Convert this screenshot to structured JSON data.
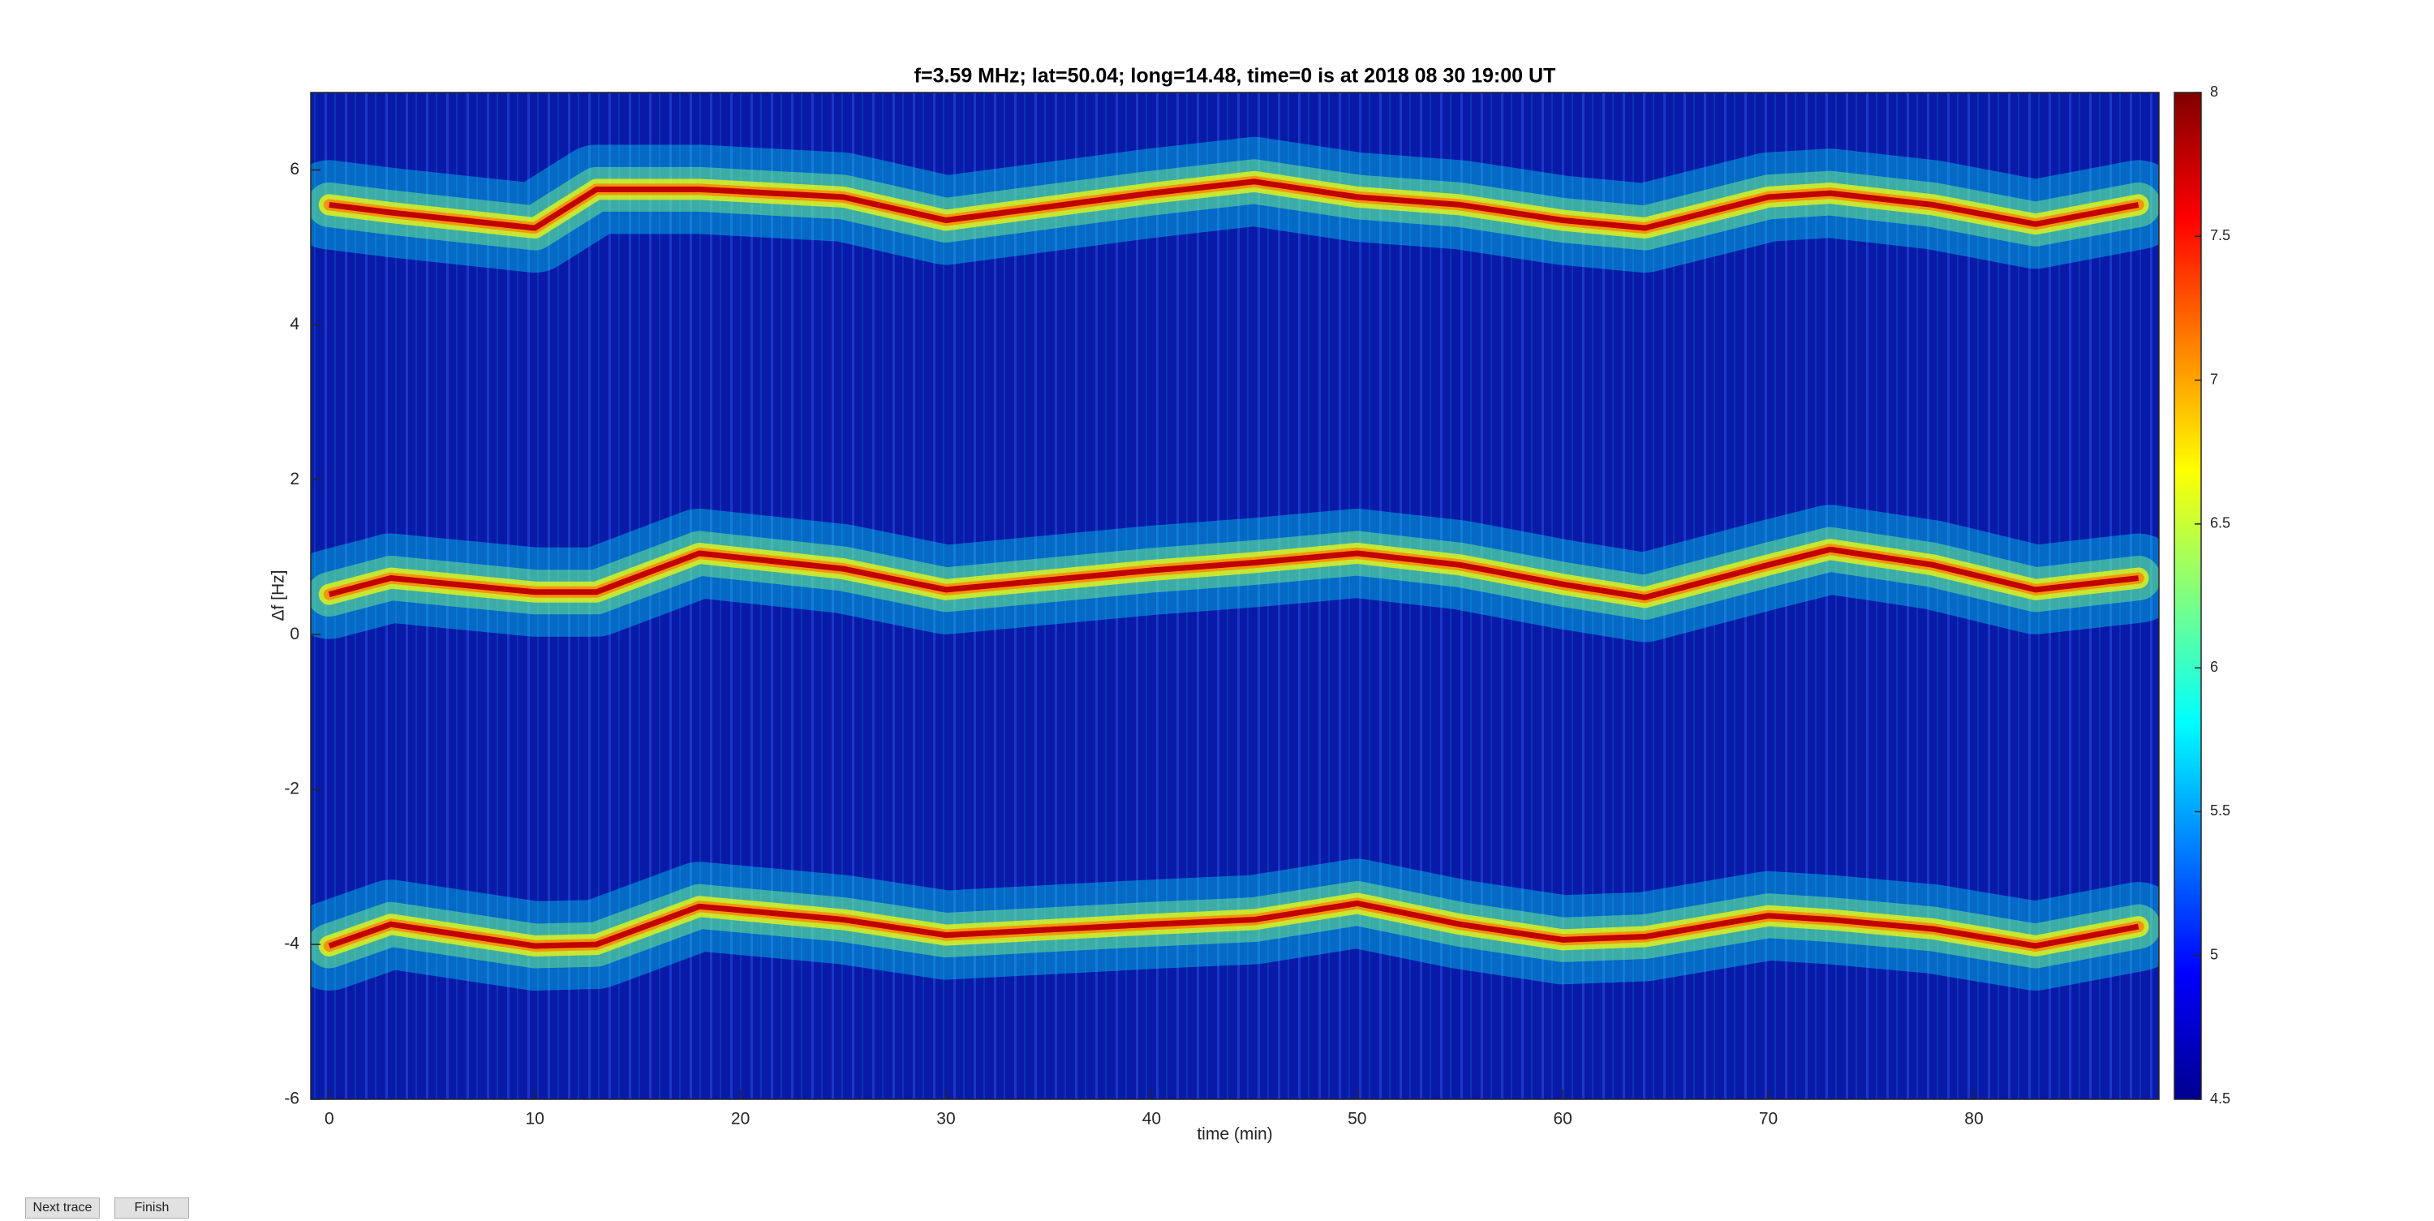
{
  "chart_data": {
    "type": "spectrogram",
    "title": "f=3.59 MHz;  lat=50.04; long=14.48, time=0 is at 2018 08 30 19:00 UT",
    "xlabel": "time (min)",
    "ylabel": "Δf [Hz]",
    "xlim": [
      -0.9,
      89
    ],
    "ylim": [
      -6,
      7
    ],
    "xticks": [
      0,
      10,
      20,
      30,
      40,
      50,
      60,
      70,
      80
    ],
    "yticks": [
      -6,
      -4,
      -2,
      0,
      2,
      4,
      6
    ],
    "x": [
      0,
      3,
      10,
      13,
      18,
      25,
      30,
      40,
      45,
      50,
      55,
      60,
      64,
      70,
      73,
      78,
      83,
      88
    ],
    "traces": [
      {
        "color": "#c00000",
        "values": [
          5.55,
          5.45,
          5.25,
          5.75,
          5.75,
          5.65,
          5.35,
          5.7,
          5.85,
          5.65,
          5.55,
          5.35,
          5.25,
          5.65,
          5.7,
          5.55,
          5.3,
          5.55
        ]
      },
      {
        "color": "#c00000",
        "values": [
          0.52,
          0.73,
          0.55,
          0.55,
          1.05,
          0.85,
          0.58,
          0.83,
          0.93,
          1.05,
          0.9,
          0.65,
          0.48,
          0.9,
          1.1,
          0.9,
          0.58,
          0.73
        ]
      },
      {
        "color": "#c00000",
        "values": [
          -4.02,
          -3.74,
          -4.02,
          -4.0,
          -3.51,
          -3.68,
          -3.88,
          -3.74,
          -3.68,
          -3.47,
          -3.74,
          -3.94,
          -3.9,
          -3.63,
          -3.68,
          -3.8,
          -4.02,
          -3.77
        ]
      }
    ],
    "clim": [
      4.5,
      8
    ],
    "cticks": [
      4.5,
      5,
      5.5,
      6,
      6.5,
      7,
      7.5,
      8
    ],
    "colormap": [
      "#00008f",
      "#0000ff",
      "#0080ff",
      "#00ffff",
      "#80ff80",
      "#ffff00",
      "#ff8000",
      "#ff0000",
      "#800000"
    ]
  },
  "buttons": [
    "Next trace",
    "Finish"
  ]
}
